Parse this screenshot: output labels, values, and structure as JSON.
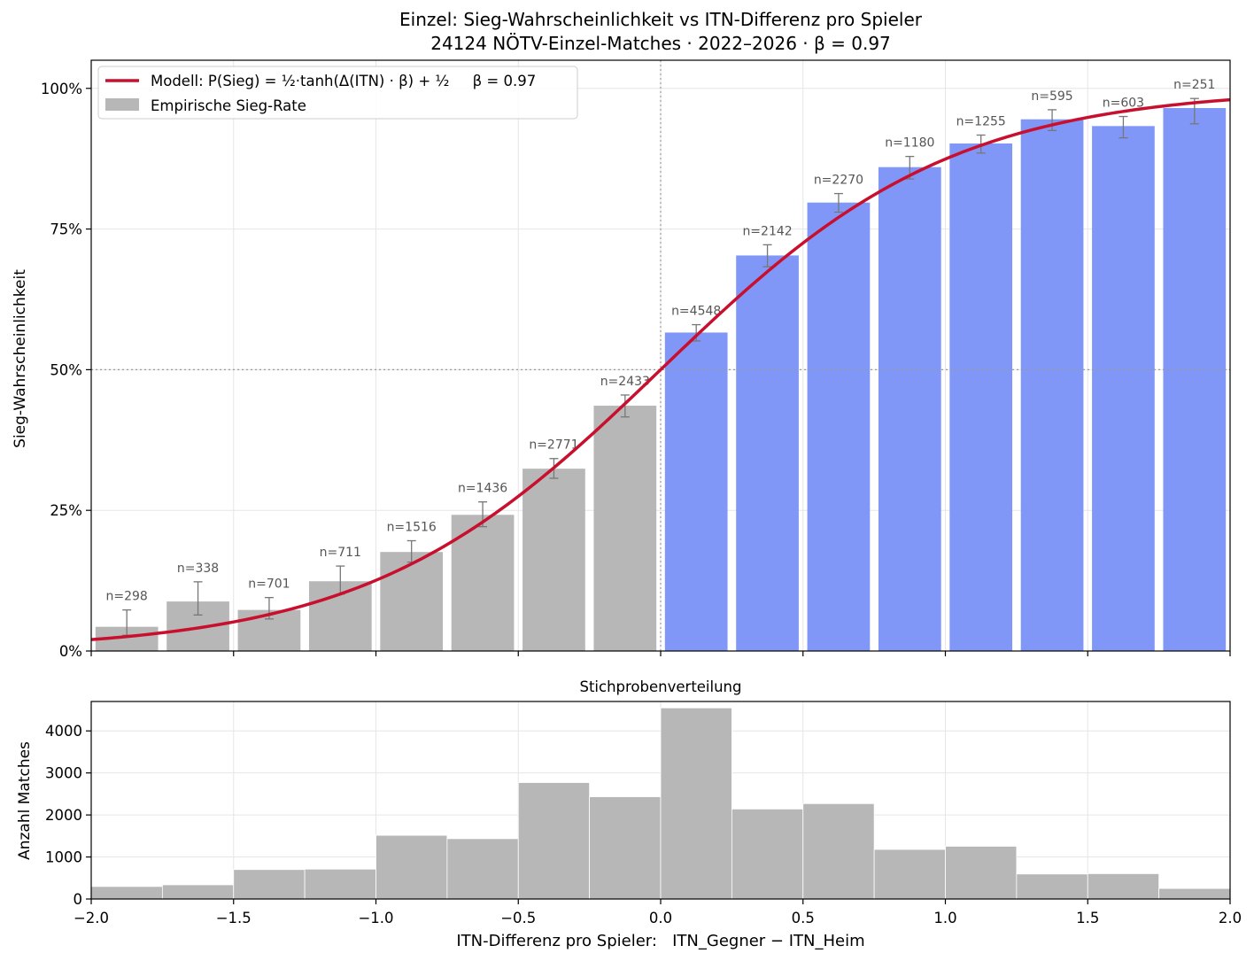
{
  "figure": {
    "title_line1": "Einzel: Sieg-Wahrscheinlichkeit vs ITN-Differenz pro Spieler",
    "title_line2": "24124 NÖTV-Einzel-Matches · 2022–2026 · β = 0.97",
    "xlabel": "ITN-Differenz pro Spieler:   ITN_Gegner − ITN_Heim"
  },
  "colors": {
    "bar_negative": "#b7b7b7",
    "bar_positive": "#8097f7",
    "curve": "#c8102e",
    "errorbar": "#777777",
    "hist": "#b7b7b7"
  },
  "chart_data": [
    {
      "type": "bar",
      "ylabel": "Sieg-Wahrscheinlichkeit",
      "xlim": [
        -2.0,
        2.0
      ],
      "ylim": [
        0,
        1.05
      ],
      "y_ticks": [
        0,
        0.25,
        0.5,
        0.75,
        1.0
      ],
      "y_tick_labels": [
        "0%",
        "25%",
        "50%",
        "75%",
        "100%"
      ],
      "grid": true,
      "legend_position": "top-left",
      "legend": {
        "model_label": "Modell: P(Sieg) = ½·tanh(Δ(ITN) · β) + ½     β = 0.97",
        "bars_label": "Empirische Sieg-Rate"
      },
      "model": {
        "beta": 0.97
      },
      "bins": [
        {
          "center": -1.875,
          "value": 0.043,
          "err_low": 0.028,
          "err_high": 0.073,
          "label": "n=298"
        },
        {
          "center": -1.625,
          "value": 0.088,
          "err_low": 0.064,
          "err_high": 0.123,
          "label": "n=338"
        },
        {
          "center": -1.375,
          "value": 0.073,
          "err_low": 0.057,
          "err_high": 0.095,
          "label": "n=701"
        },
        {
          "center": -1.125,
          "value": 0.124,
          "err_low": 0.101,
          "err_high": 0.151,
          "label": "n=711"
        },
        {
          "center": -0.875,
          "value": 0.176,
          "err_low": 0.158,
          "err_high": 0.196,
          "label": "n=1516"
        },
        {
          "center": -0.625,
          "value": 0.242,
          "err_low": 0.221,
          "err_high": 0.265,
          "label": "n=1436"
        },
        {
          "center": -0.375,
          "value": 0.324,
          "err_low": 0.307,
          "err_high": 0.342,
          "label": "n=2771"
        },
        {
          "center": -0.125,
          "value": 0.436,
          "err_low": 0.416,
          "err_high": 0.455,
          "label": "n=2433"
        },
        {
          "center": 0.125,
          "value": 0.566,
          "err_low": 0.551,
          "err_high": 0.58,
          "label": "n=4548"
        },
        {
          "center": 0.375,
          "value": 0.703,
          "err_low": 0.683,
          "err_high": 0.722,
          "label": "n=2142"
        },
        {
          "center": 0.625,
          "value": 0.797,
          "err_low": 0.78,
          "err_high": 0.813,
          "label": "n=2270"
        },
        {
          "center": 0.875,
          "value": 0.86,
          "err_low": 0.839,
          "err_high": 0.879,
          "label": "n=1180"
        },
        {
          "center": 1.125,
          "value": 0.902,
          "err_low": 0.885,
          "err_high": 0.917,
          "label": "n=1255"
        },
        {
          "center": 1.375,
          "value": 0.945,
          "err_low": 0.925,
          "err_high": 0.962,
          "label": "n=595"
        },
        {
          "center": 1.625,
          "value": 0.933,
          "err_low": 0.912,
          "err_high": 0.95,
          "label": "n=603"
        },
        {
          "center": 1.875,
          "value": 0.965,
          "err_low": 0.937,
          "err_high": 0.982,
          "label": "n=251"
        }
      ]
    },
    {
      "type": "bar",
      "title": "Stichprobenverteilung",
      "ylabel": "Anzahl Matches",
      "xlim": [
        -2.0,
        2.0
      ],
      "ylim": [
        0,
        4700
      ],
      "y_ticks": [
        0,
        1000,
        2000,
        3000,
        4000
      ],
      "y_tick_labels": [
        "0",
        "1000",
        "2000",
        "3000",
        "4000"
      ],
      "x_ticks": [
        -2.0,
        -1.5,
        -1.0,
        -0.5,
        0.0,
        0.5,
        1.0,
        1.5,
        2.0
      ],
      "x_tick_labels": [
        "−2.0",
        "−1.5",
        "−1.0",
        "−0.5",
        "0.0",
        "0.5",
        "1.0",
        "1.5",
        "2.0"
      ],
      "grid": true,
      "bins": [
        {
          "start": -2.0,
          "end": -1.75,
          "count": 298
        },
        {
          "start": -1.75,
          "end": -1.5,
          "count": 338
        },
        {
          "start": -1.5,
          "end": -1.25,
          "count": 701
        },
        {
          "start": -1.25,
          "end": -1.0,
          "count": 711
        },
        {
          "start": -1.0,
          "end": -0.75,
          "count": 1516
        },
        {
          "start": -0.75,
          "end": -0.5,
          "count": 1436
        },
        {
          "start": -0.5,
          "end": -0.25,
          "count": 2771
        },
        {
          "start": -0.25,
          "end": 0.0,
          "count": 2433
        },
        {
          "start": 0.0,
          "end": 0.25,
          "count": 4548
        },
        {
          "start": 0.25,
          "end": 0.5,
          "count": 2142
        },
        {
          "start": 0.5,
          "end": 0.75,
          "count": 2270
        },
        {
          "start": 0.75,
          "end": 1.0,
          "count": 1180
        },
        {
          "start": 1.0,
          "end": 1.25,
          "count": 1255
        },
        {
          "start": 1.25,
          "end": 1.5,
          "count": 595
        },
        {
          "start": 1.5,
          "end": 1.75,
          "count": 603
        },
        {
          "start": 1.75,
          "end": 2.0,
          "count": 251
        }
      ]
    }
  ]
}
